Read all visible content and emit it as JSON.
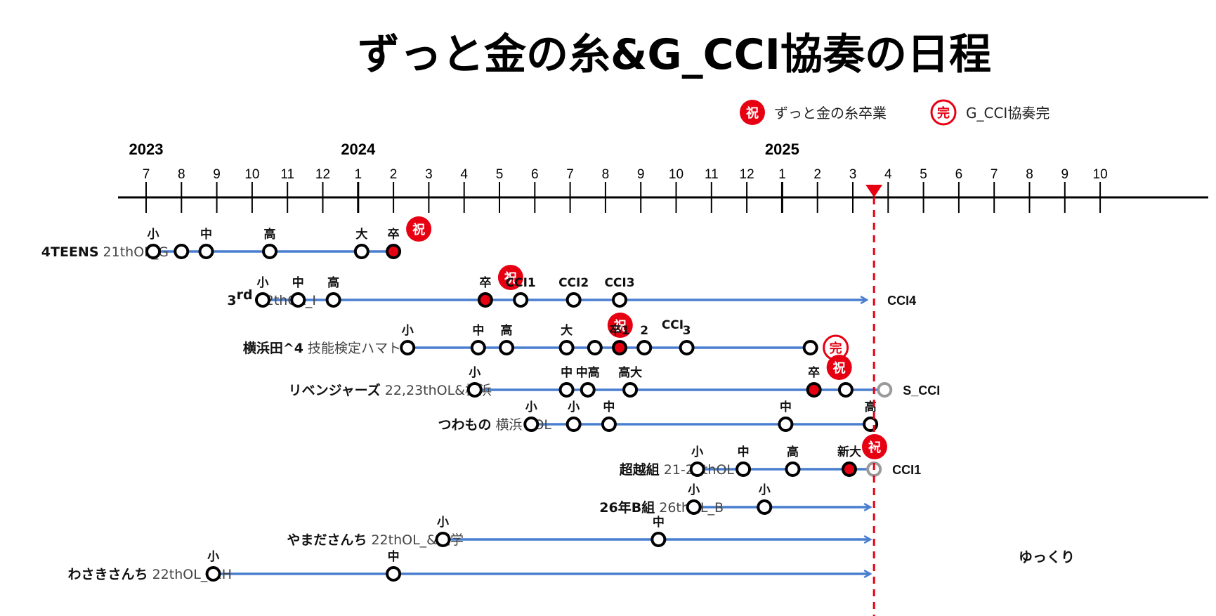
{
  "title": "ずっと金の糸&G_CCI協奏の日程",
  "legend": {
    "grad_badge": "祝",
    "grad_label": "ずっと金の糸卒業",
    "done_badge": "完",
    "done_label": "G_CCI協奏完"
  },
  "timeline": {
    "years": [
      {
        "label": "2023",
        "month": "2023-07"
      },
      {
        "label": "2024",
        "month": "2024-01"
      },
      {
        "label": "2025",
        "month": "2025-01"
      }
    ],
    "months": [
      {
        "date": "2023-07",
        "label": "7"
      },
      {
        "date": "2023-08",
        "label": "8"
      },
      {
        "date": "2023-09",
        "label": "9"
      },
      {
        "date": "2023-10",
        "label": "10"
      },
      {
        "date": "2023-11",
        "label": "11"
      },
      {
        "date": "2023-12",
        "label": "12"
      },
      {
        "date": "2024-01",
        "label": "1"
      },
      {
        "date": "2024-02",
        "label": "2"
      },
      {
        "date": "2024-03",
        "label": "3"
      },
      {
        "date": "2024-04",
        "label": "4"
      },
      {
        "date": "2024-05",
        "label": "5"
      },
      {
        "date": "2024-06",
        "label": "6"
      },
      {
        "date": "2024-07",
        "label": "7"
      },
      {
        "date": "2024-08",
        "label": "8"
      },
      {
        "date": "2024-09",
        "label": "9"
      },
      {
        "date": "2024-10",
        "label": "10"
      },
      {
        "date": "2024-11",
        "label": "11"
      },
      {
        "date": "2024-12",
        "label": "12"
      },
      {
        "date": "2025-01",
        "label": "1"
      },
      {
        "date": "2025-02",
        "label": "2"
      },
      {
        "date": "2025-03",
        "label": "3"
      },
      {
        "date": "2025-04",
        "label": "4"
      },
      {
        "date": "2025-05",
        "label": "5"
      },
      {
        "date": "2025-06",
        "label": "6"
      },
      {
        "date": "2025-07",
        "label": "7"
      },
      {
        "date": "2025-08",
        "label": "8"
      },
      {
        "date": "2025-09",
        "label": "9"
      },
      {
        "date": "2025-10",
        "label": "10"
      }
    ],
    "today": "2025-03.6"
  },
  "colors": {
    "line": "#4a7fd0",
    "red": "#e60012",
    "gray": "#9a9a9a",
    "axis": "#000000"
  },
  "rows": [
    {
      "name": "4TEENS",
      "desc": "21thOL_G",
      "events": [
        {
          "m": 0.2,
          "label": "小",
          "type": "open"
        },
        {
          "m": 1.0,
          "label": "",
          "type": "open"
        },
        {
          "m": 1.7,
          "label": "中",
          "type": "open"
        },
        {
          "m": 3.5,
          "label": "高",
          "type": "open"
        },
        {
          "m": 6.1,
          "label": "大",
          "type": "open"
        },
        {
          "m": 7.0,
          "label": "卒",
          "type": "red",
          "badge": "祝"
        }
      ],
      "arrow": null,
      "end_label": ""
    },
    {
      "name": "3rd",
      "name_sup": "rd",
      "desc": "22thOL_I",
      "events": [
        {
          "m": 3.3,
          "label": "小",
          "type": "open"
        },
        {
          "m": 4.3,
          "label": "中",
          "type": "open"
        },
        {
          "m": 5.3,
          "label": "高",
          "type": "open"
        },
        {
          "m": 9.6,
          "label": "卒",
          "type": "red",
          "badge": "祝"
        },
        {
          "m": 10.6,
          "label": "CCI1",
          "type": "open"
        },
        {
          "m": 12.1,
          "label": "CCI2",
          "type": "open"
        },
        {
          "m": 13.4,
          "label": "CCI3",
          "type": "open"
        }
      ],
      "arrow": 20.5,
      "end_label": "CCI4"
    },
    {
      "name": "横浜田^4",
      "desc": "技能検定ハマトレ",
      "events": [
        {
          "m": 7.4,
          "label": "小",
          "type": "open"
        },
        {
          "m": 9.4,
          "label": "中",
          "type": "open"
        },
        {
          "m": 10.2,
          "label": "高",
          "type": "open"
        },
        {
          "m": 11.9,
          "label": "大",
          "type": "open"
        },
        {
          "m": 12.7,
          "label": "",
          "type": "open",
          "badge": "祝"
        },
        {
          "m": 13.4,
          "label": "卒1",
          "type": "red"
        },
        {
          "m": 14.1,
          "label": "2",
          "type": "open"
        },
        {
          "m": 15.3,
          "label": "3",
          "type": "open"
        },
        {
          "m": 18.8,
          "label": "",
          "type": "open",
          "badge": "完"
        }
      ],
      "arrow": null,
      "end_label": ""
    },
    {
      "name": "リベンジャーズ",
      "desc": "22,23thOL&横浜",
      "events": [
        {
          "m": 9.3,
          "label": "小",
          "type": "open"
        },
        {
          "m": 11.9,
          "label": "中",
          "type": "open"
        },
        {
          "m": 12.5,
          "label": "中高",
          "type": "open"
        },
        {
          "m": 13.7,
          "label": "高大",
          "type": "open"
        },
        {
          "m": 18.9,
          "label": "卒",
          "type": "red",
          "badge": "祝"
        },
        {
          "m": 19.8,
          "label": "",
          "type": "open"
        },
        {
          "m": 20.9,
          "label": "",
          "type": "gray"
        }
      ],
      "arrow": null,
      "end_label": "S_CCI"
    },
    {
      "name": "つわもの",
      "desc": "横浜+OL",
      "events": [
        {
          "m": 10.9,
          "label": "小",
          "type": "open"
        },
        {
          "m": 12.1,
          "label": "小",
          "type": "open"
        },
        {
          "m": 13.1,
          "label": "中",
          "type": "open"
        },
        {
          "m": 18.1,
          "label": "中",
          "type": "open"
        },
        {
          "m": 20.5,
          "label": "高",
          "type": "open"
        }
      ],
      "arrow": null,
      "end_label": ""
    },
    {
      "name": "超越組",
      "desc": "21-26thOL",
      "events": [
        {
          "m": 15.6,
          "label": "小",
          "type": "open"
        },
        {
          "m": 16.9,
          "label": "中",
          "type": "open"
        },
        {
          "m": 18.3,
          "label": "高",
          "type": "open"
        },
        {
          "m": 19.9,
          "label": "新大",
          "type": "red",
          "badge": "祝"
        },
        {
          "m": 20.6,
          "label": "",
          "type": "gray"
        }
      ],
      "arrow": null,
      "end_label": "CCI1"
    },
    {
      "name": "26年B組",
      "desc": "26thOL_B",
      "events": [
        {
          "m": 15.5,
          "label": "小",
          "type": "open"
        },
        {
          "m": 17.5,
          "label": "小",
          "type": "open"
        }
      ],
      "arrow": 20.6,
      "end_label": ""
    },
    {
      "name": "やまださんち",
      "desc": "22thOL_&通学",
      "events": [
        {
          "m": 8.4,
          "label": "小",
          "type": "open"
        },
        {
          "m": 14.5,
          "label": "中",
          "type": "open"
        }
      ],
      "arrow": 20.6,
      "end_label": ""
    },
    {
      "name": "わさきさんち",
      "desc": "22thOL_I&H",
      "events": [
        {
          "m": 1.9,
          "label": "小",
          "type": "open"
        },
        {
          "m": 7.0,
          "label": "中",
          "type": "open"
        }
      ],
      "arrow": 20.6,
      "end_label": ""
    }
  ],
  "footer_note": "ゆっくり"
}
